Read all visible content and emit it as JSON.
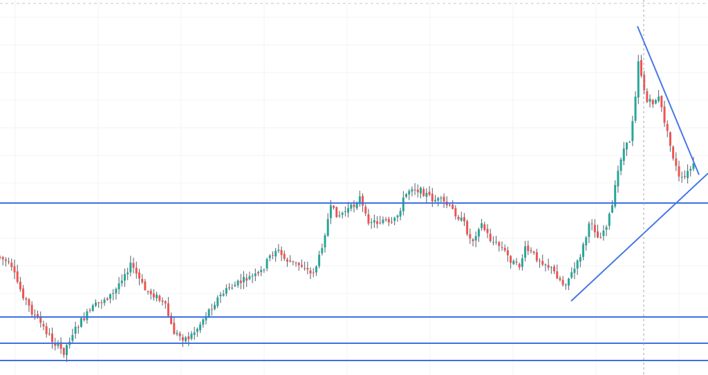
{
  "colors": {
    "up": "#26a69a",
    "down": "#ef5350",
    "wick": "#555b66",
    "level_line": "#3d6fe0",
    "trend_line": "#4677e6",
    "grid": "#f1f3f6",
    "background": "#ffffff"
  },
  "chart_data": {
    "type": "candlestick",
    "title": "",
    "xlabel": "",
    "ylabel": "",
    "grid": true,
    "ylim": [
      0,
      543
    ],
    "bar_count": 240,
    "horizontal_levels": [
      294,
      459,
      497,
      522
    ],
    "trend_lines": [
      {
        "name": "",
        "from": [
          826,
          436
        ],
        "to": [
          1024,
          251
        ]
      },
      {
        "name": "",
        "from": [
          922,
          38
        ],
        "to": [
          1011,
          253
        ]
      }
    ],
    "crosshair_x": 931,
    "close_path": [
      [
        0,
        372
      ],
      [
        10,
        380
      ],
      [
        18,
        392
      ],
      [
        30,
        420
      ],
      [
        45,
        450
      ],
      [
        60,
        470
      ],
      [
        75,
        492
      ],
      [
        92,
        510
      ],
      [
        105,
        482
      ],
      [
        120,
        462
      ],
      [
        135,
        445
      ],
      [
        150,
        433
      ],
      [
        165,
        425
      ],
      [
        178,
        398
      ],
      [
        190,
        383
      ],
      [
        200,
        402
      ],
      [
        210,
        420
      ],
      [
        225,
        428
      ],
      [
        240,
        445
      ],
      [
        250,
        480
      ],
      [
        262,
        488
      ],
      [
        272,
        490
      ],
      [
        285,
        476
      ],
      [
        300,
        452
      ],
      [
        315,
        432
      ],
      [
        330,
        418
      ],
      [
        345,
        410
      ],
      [
        360,
        402
      ],
      [
        375,
        398
      ],
      [
        390,
        372
      ],
      [
        400,
        360
      ],
      [
        410,
        374
      ],
      [
        425,
        382
      ],
      [
        440,
        385
      ],
      [
        450,
        398
      ],
      [
        460,
        380
      ],
      [
        468,
        345
      ],
      [
        478,
        302
      ],
      [
        490,
        312
      ],
      [
        500,
        305
      ],
      [
        510,
        300
      ],
      [
        520,
        285
      ],
      [
        530,
        318
      ],
      [
        545,
        322
      ],
      [
        555,
        318
      ],
      [
        565,
        328
      ],
      [
        575,
        312
      ],
      [
        585,
        285
      ],
      [
        595,
        270
      ],
      [
        605,
        275
      ],
      [
        615,
        280
      ],
      [
        625,
        288
      ],
      [
        640,
        292
      ],
      [
        650,
        300
      ],
      [
        660,
        310
      ],
      [
        672,
        325
      ],
      [
        682,
        352
      ],
      [
        695,
        322
      ],
      [
        710,
        348
      ],
      [
        725,
        358
      ],
      [
        740,
        378
      ],
      [
        750,
        388
      ],
      [
        760,
        360
      ],
      [
        775,
        372
      ],
      [
        790,
        382
      ],
      [
        805,
        398
      ],
      [
        815,
        412
      ],
      [
        826,
        398
      ],
      [
        835,
        382
      ],
      [
        845,
        352
      ],
      [
        855,
        318
      ],
      [
        865,
        345
      ],
      [
        875,
        330
      ],
      [
        885,
        302
      ],
      [
        892,
        258
      ],
      [
        900,
        218
      ],
      [
        910,
        208
      ],
      [
        918,
        150
      ],
      [
        923,
        85
      ],
      [
        928,
        110
      ],
      [
        935,
        148
      ],
      [
        945,
        148
      ],
      [
        952,
        140
      ],
      [
        960,
        170
      ],
      [
        968,
        206
      ],
      [
        975,
        232
      ],
      [
        983,
        262
      ],
      [
        990,
        258
      ],
      [
        998,
        245
      ],
      [
        1003,
        240
      ]
    ]
  }
}
